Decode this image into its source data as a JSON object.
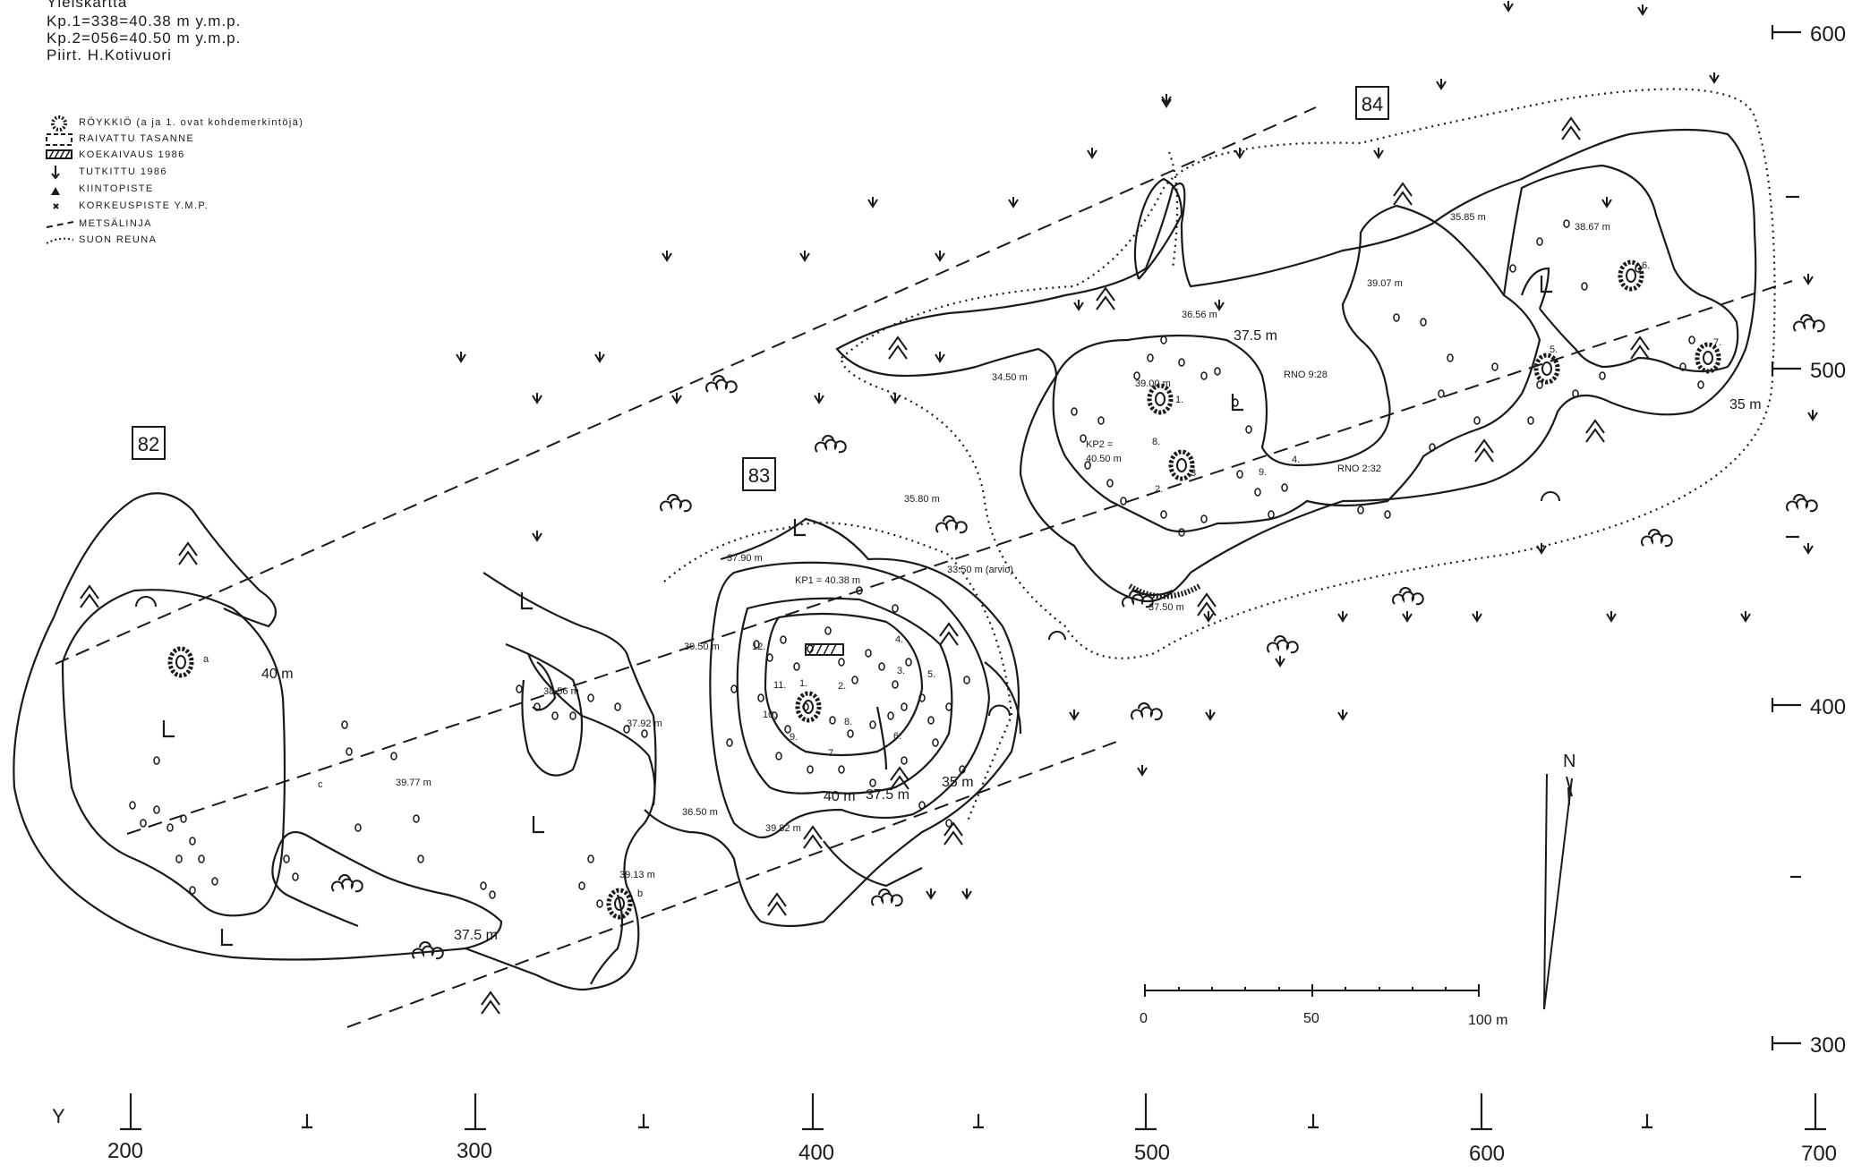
{
  "header": {
    "title": "Yleiskartta",
    "line1": "Kp.1=338=40.38 m y.m.p.",
    "line2": "Kp.2=056=40.50 m y.m.p.",
    "line3": "Piirt. H.Kotivuori"
  },
  "legend": [
    {
      "icon": "cairn-icon",
      "label": "RÖYKKIÖ (a ja 1. ovat kohdemerkintöjä)"
    },
    {
      "icon": "cleared-terrace-icon",
      "label": "RAIVATTU TASANNE"
    },
    {
      "icon": "test-excavation-icon",
      "label": "KOEKAIVAUS 1986"
    },
    {
      "icon": "arrow-down-icon",
      "label": "TUTKITTU 1986"
    },
    {
      "icon": "triangle-icon",
      "label": "KIINTOPISTE"
    },
    {
      "icon": "cross-icon",
      "label": "KORKEUSPISTE Y.M.P."
    },
    {
      "icon": "dashed-line-icon",
      "label": "METSÄLINJA"
    },
    {
      "icon": "dotted-line-icon",
      "label": "SUON REUNA"
    }
  ],
  "sites": {
    "s82": "82",
    "s83": "83",
    "s84": "84"
  },
  "contours": {
    "c40_82": "40 m",
    "c375_82": "37.5 m",
    "c40_83": "40 m",
    "c375_83": "37.5 m",
    "c35_83": "35 m",
    "c375_84": "37.5 m",
    "c35_84": "35 m"
  },
  "labels": {
    "e3977": "39.77 m",
    "e3856": "38.56 m",
    "e3792": "37.92 m",
    "e3913": "39.13 m",
    "e3650": "36.50 m",
    "e3982": "39.82 m",
    "e3950": "39.50 m",
    "e3790": "37.90 m",
    "kp1": "KP1 = 40.38 m",
    "e3350": "33.50 m (arvio)",
    "e3580": "35.80 m",
    "e3450": "34.50 m",
    "e3656": "36.56 m",
    "e3900": "39.00 m",
    "kp2a": "KP2 =",
    "kp2b": "40.50 m",
    "e3750": "37.50 m",
    "e3907": "39.07 m",
    "e3585": "35.85 m",
    "e3867": "38.67 m",
    "rno1": "RNO 9:28",
    "rno2": "RNO 2:32",
    "ma": "a",
    "mb": "b",
    "mc": "c",
    "n1": "1.",
    "n2": "2.",
    "n3": "3.",
    "n4": "4.",
    "n5": "5.",
    "n6": "6.",
    "n7": "7.",
    "n8": "8.",
    "n9": "9.",
    "n10": "10.",
    "n11": "11.",
    "n12": "12.",
    "p1": "1.",
    "p2": "2.",
    "p3": "3",
    "p4": "4.",
    "p5": "5.",
    "p6": "6.",
    "p7": "7.",
    "p8": "8.",
    "p9": "9."
  },
  "axis_y": [
    "600",
    "500",
    "400",
    "300"
  ],
  "axis_x_label": "Y",
  "axis_x": [
    "200",
    "300",
    "400",
    "500",
    "600",
    "700"
  ],
  "scale": {
    "s0": "0",
    "s50": "50",
    "s100": "100 m"
  },
  "north": "N"
}
